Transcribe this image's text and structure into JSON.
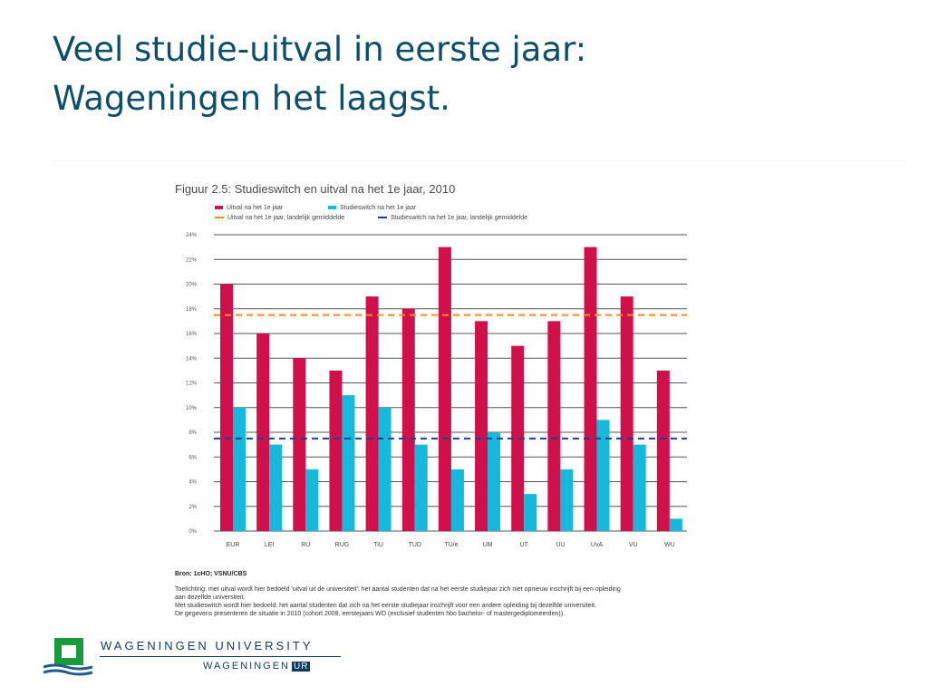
{
  "slide": {
    "title_line1": "Veel studie-uitval in eerste jaar:",
    "title_line2": "Wageningen het laagst."
  },
  "figure": {
    "title": "Figuur 2.5: Studieswitch en uitval na het 1e jaar, 2010",
    "legend": {
      "uitval": "Uitval na het 1e jaar",
      "switch": "Studieswitch na het 1e jaar",
      "uitval_avg": "Uitval na het 1e jaar, landelijk gemiddelde",
      "switch_avg": "Studieswitch na het 1e jaar, landelijk gemiddelde"
    },
    "source": "Bron: 1cHO; VSNU/CBS",
    "notes": [
      "Toelichting: met uitval wordt hier bedoeld 'uitval uit de universiteit': het aantal studenten dat na het eerste studiejaar zich niet opnieuw inschrijft bij een opleiding",
      "aan dezelfde universiteit.",
      "Met studieswitch wordt hier bedoeld: het aantal studenten dat zich na het eerste studiejaar inschrijft voor een andere opleiding bij dezelfde universiteit.",
      "De gegevens presenteren de situatie in 2010 (cohort 2009, eerstejaars WO (exclusief studenten hbo bachelor- of mastergediplomeerden))."
    ]
  },
  "logo": {
    "line1": "WAGENINGEN UNIVERSITY",
    "line2": "WAGENINGEN",
    "badge": "UR"
  },
  "colors": {
    "title": "#0d4f6b",
    "uitval": "#d0104a",
    "switch": "#16b8dc",
    "uitval_avg": "#f28c28",
    "switch_avg": "#1f3f8f",
    "grid": "#555555"
  },
  "chart_data": {
    "type": "bar",
    "title": "Figuur 2.5: Studieswitch en uitval na het 1e jaar, 2010",
    "xlabel": "",
    "ylabel": "",
    "categories": [
      "EUR",
      "LEI",
      "RU",
      "RUG",
      "TiU",
      "TUD",
      "TU/e",
      "UM",
      "UT",
      "UU",
      "UvA",
      "VU",
      "WU"
    ],
    "series": [
      {
        "name": "Uitval na het 1e jaar",
        "values": [
          20,
          16,
          14,
          13,
          19,
          18,
          23,
          17,
          15,
          17,
          23,
          19,
          13
        ]
      },
      {
        "name": "Studieswitch na het 1e jaar",
        "values": [
          10,
          7,
          5,
          11,
          10,
          7,
          5,
          8,
          3,
          5,
          9,
          7,
          1
        ]
      }
    ],
    "reference_lines": [
      {
        "name": "Uitval na het 1e jaar, landelijk gemiddelde",
        "value": 17.5
      },
      {
        "name": "Studieswitch na het 1e jaar, landelijk gemiddelde",
        "value": 7.5
      }
    ],
    "ylim": [
      0,
      24
    ],
    "yticks": [
      0,
      2,
      4,
      6,
      8,
      10,
      12,
      14,
      16,
      18,
      20,
      22,
      24
    ],
    "ytick_labels": [
      "0%",
      "2%",
      "4%",
      "6%",
      "8%",
      "10%",
      "12%",
      "14%",
      "16%",
      "18%",
      "20%",
      "22%",
      "24%"
    ],
    "grid": true,
    "legend_position": "top-left"
  }
}
